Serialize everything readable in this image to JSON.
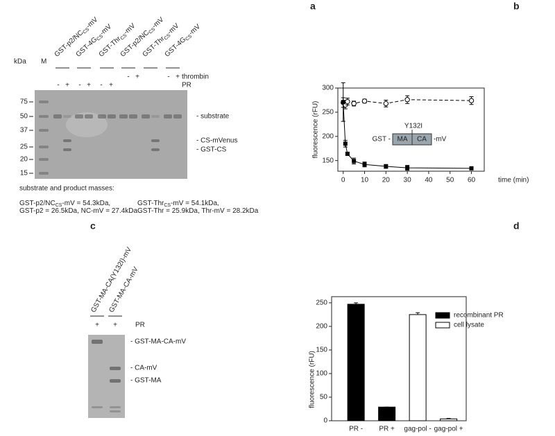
{
  "panels": {
    "a": {
      "label": "a",
      "units": "kDa",
      "marker": "M",
      "lanes": [
        [
          "GST-p2/NC",
          "CS",
          "-mV"
        ],
        [
          "GST-4G",
          "CS",
          "-mV"
        ],
        [
          "GST-Thr",
          "CS",
          "-mV"
        ],
        [
          "GST-p2/NC",
          "CS",
          "-mV"
        ],
        [
          "GST-Thr",
          "CS",
          "-mV"
        ],
        [
          "GST-4G",
          "CS",
          "-mV"
        ]
      ],
      "rows": [
        {
          "name": "thrombin",
          "signs": [
            "-",
            "+",
            "-",
            "+"
          ]
        },
        {
          "name": "PR",
          "signs": [
            "-",
            "+",
            "-",
            "+",
            "-",
            "+"
          ]
        }
      ],
      "ladder": [
        "75",
        "50",
        "37",
        "25",
        "20",
        "15"
      ],
      "bands": [
        "- substrate",
        "- CS-mVenus",
        "- GST-CS"
      ],
      "masses_title": "substrate and product masses:",
      "masses": [
        [
          [
            "GST-p2/NC",
            "CS",
            "-mV = 54.3kDa,"
          ],
          [
            "GST-Thr",
            "CS",
            "-mV = 54.1kDa,"
          ]
        ],
        [
          [
            "GST-p2 = 26.5kDa,  NC-mV = 27.4kDa"
          ],
          [
            "GST-Thr = 25.9kDa, Thr-mV = 28.2kDa"
          ]
        ]
      ]
    },
    "c": {
      "label": "c",
      "lanes": [
        "GST-MA-CA(Y132I)-mV",
        "GST-MA-CA-mV"
      ],
      "signs": [
        "+",
        "+"
      ],
      "row": "PR",
      "bands": [
        "- GST-MA-CA-mV",
        "- CA-mV",
        "- GST-MA"
      ]
    }
  },
  "chart_data": [
    {
      "type": "line",
      "panel": "b",
      "y_label": "fluorescence (rFU)",
      "x_label": "time (min)",
      "x": [
        0,
        1,
        2,
        5,
        10,
        20,
        30,
        60
      ],
      "series": [
        {
          "marker": "circle-open",
          "line_style": "dashed",
          "color": "#000000",
          "values": [
            270,
            265,
            272,
            268,
            273,
            268,
            276,
            274
          ],
          "errors": [
            10,
            8,
            7,
            5,
            4,
            7,
            8,
            8
          ]
        },
        {
          "marker": "square",
          "line_style": "solid",
          "color": "#000000",
          "values": [
            271,
            185,
            164,
            149,
            142,
            138,
            135,
            134
          ],
          "errors": [
            40,
            7,
            3,
            6,
            5,
            4,
            5,
            2
          ]
        }
      ],
      "xlim": [
        -2.5,
        66
      ],
      "xticks": [
        0,
        10,
        20,
        30,
        40,
        50,
        60
      ],
      "ylim": [
        128,
        300
      ],
      "yticks": [
        150,
        200,
        250,
        300
      ],
      "annotation": {
        "prefix": "GST -",
        "domains": [
          "MA",
          "CA"
        ],
        "suffix": "-mV",
        "mutation": "Y132I"
      }
    },
    {
      "type": "bar",
      "panel": "d",
      "y_label": "fluorescence (rFU)",
      "categories": [
        "PR -",
        "PR +",
        "gag-pol -",
        "gag-pol +"
      ],
      "series": [
        {
          "name": "recombinant PR",
          "color": "#000000",
          "values": [
            247,
            29,
            null,
            null
          ],
          "errors": [
            3,
            0,
            null,
            null
          ]
        },
        {
          "name": "cell lysate",
          "color": "#ffffff",
          "values": [
            null,
            null,
            225,
            4
          ],
          "errors": [
            null,
            null,
            4,
            1
          ]
        }
      ],
      "ylim": [
        0,
        263
      ],
      "yticks": [
        0,
        50,
        100,
        150,
        200,
        250
      ],
      "legend": "top-right"
    }
  ]
}
